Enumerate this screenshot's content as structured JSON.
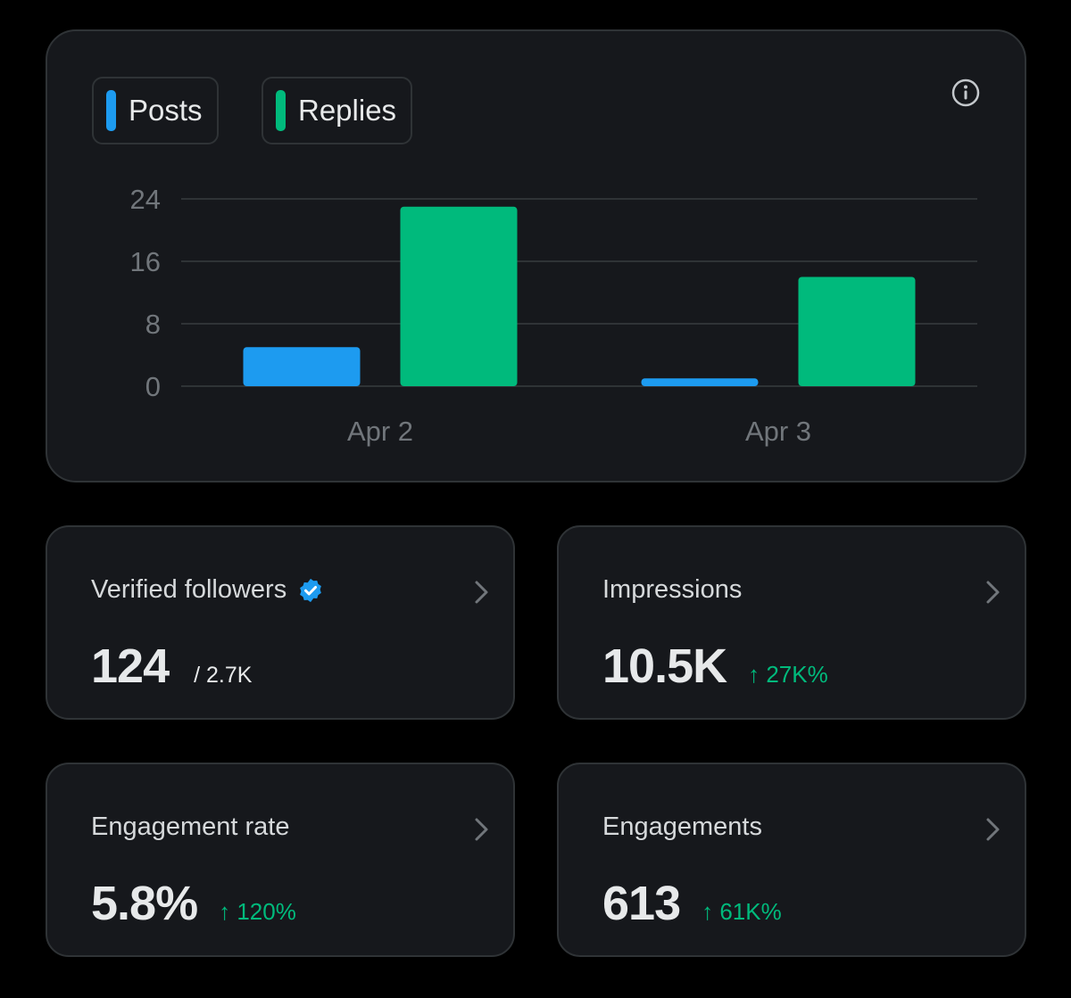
{
  "legend": {
    "posts_label": "Posts",
    "replies_label": "Replies"
  },
  "colors": {
    "posts": "#1d9bf0",
    "replies": "#00ba7c",
    "gain": "#00ba7c"
  },
  "icons": {
    "info": "info-circle-icon",
    "verified": "verified-badge-icon",
    "chevron": "chevron-right-icon"
  },
  "chart_data": {
    "type": "bar",
    "categories": [
      "Apr 2",
      "Apr 3"
    ],
    "series": [
      {
        "name": "Posts",
        "values": [
          5,
          1
        ]
      },
      {
        "name": "Replies",
        "values": [
          23,
          14
        ]
      }
    ],
    "yticks": [
      "0",
      "8",
      "16",
      "24"
    ],
    "ylim": [
      0,
      24
    ],
    "title": "",
    "xlabel": "",
    "ylabel": ""
  },
  "stats": {
    "verified": {
      "title": "Verified followers",
      "value": "124",
      "sub": "/ 2.7K"
    },
    "impressions": {
      "title": "Impressions",
      "value": "10.5K",
      "change": "↑ 27K%"
    },
    "engagement_rate": {
      "title": "Engagement rate",
      "value": "5.8%",
      "change": "↑ 120%"
    },
    "engagements": {
      "title": "Engagements",
      "value": "613",
      "change": "↑ 61K%"
    }
  }
}
